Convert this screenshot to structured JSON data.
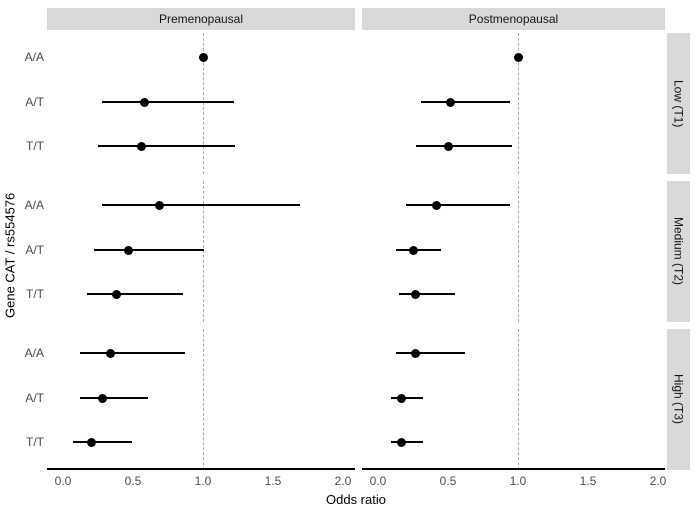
{
  "chart_data": {
    "type": "scatter",
    "subtype": "forest-plot-faceted",
    "title": "",
    "xlabel": "Odds ratio",
    "ylabel": "Gene CAT / rs554576",
    "xlim": [
      0.0,
      2.0
    ],
    "x_ticks": [
      0.0,
      0.5,
      1.0,
      1.5,
      2.0
    ],
    "x_tick_labels": [
      "0.0",
      "0.5",
      "1.0",
      "1.5",
      "2.0"
    ],
    "reference_line_x": 1.0,
    "grid": "off",
    "columns": [
      "Premenopausal",
      "Postmenopausal"
    ],
    "rows": [
      "Low (T1)",
      "Medium (T2)",
      "High (T3)"
    ],
    "categories": [
      "A/A",
      "A/T",
      "T/T"
    ],
    "panels": [
      {
        "column": "Premenopausal",
        "row": "Low (T1)",
        "points": [
          {
            "genotype": "A/A",
            "or": 1.0,
            "lo": null,
            "hi": null,
            "reference": true
          },
          {
            "genotype": "A/T",
            "or": 0.58,
            "lo": 0.28,
            "hi": 1.22,
            "reference": false
          },
          {
            "genotype": "T/T",
            "or": 0.56,
            "lo": 0.25,
            "hi": 1.23,
            "reference": false
          }
        ]
      },
      {
        "column": "Premenopausal",
        "row": "Medium (T2)",
        "points": [
          {
            "genotype": "A/A",
            "or": 0.69,
            "lo": 0.28,
            "hi": 1.69,
            "reference": false
          },
          {
            "genotype": "A/T",
            "or": 0.47,
            "lo": 0.22,
            "hi": 1.01,
            "reference": false
          },
          {
            "genotype": "T/T",
            "or": 0.38,
            "lo": 0.17,
            "hi": 0.86,
            "reference": false
          }
        ]
      },
      {
        "column": "Premenopausal",
        "row": "High (T3)",
        "points": [
          {
            "genotype": "A/A",
            "or": 0.34,
            "lo": 0.12,
            "hi": 0.87,
            "reference": false
          },
          {
            "genotype": "A/T",
            "or": 0.28,
            "lo": 0.12,
            "hi": 0.61,
            "reference": false
          },
          {
            "genotype": "T/T",
            "or": 0.2,
            "lo": 0.07,
            "hi": 0.49,
            "reference": false
          }
        ]
      },
      {
        "column": "Postmenopausal",
        "row": "Low (T1)",
        "points": [
          {
            "genotype": "A/A",
            "or": 1.0,
            "lo": null,
            "hi": null,
            "reference": true
          },
          {
            "genotype": "A/T",
            "or": 0.52,
            "lo": 0.31,
            "hi": 0.94,
            "reference": false
          },
          {
            "genotype": "T/T",
            "or": 0.5,
            "lo": 0.27,
            "hi": 0.96,
            "reference": false
          }
        ]
      },
      {
        "column": "Postmenopausal",
        "row": "Medium (T2)",
        "points": [
          {
            "genotype": "A/A",
            "or": 0.42,
            "lo": 0.2,
            "hi": 0.94,
            "reference": false
          },
          {
            "genotype": "A/T",
            "or": 0.25,
            "lo": 0.13,
            "hi": 0.45,
            "reference": false
          },
          {
            "genotype": "T/T",
            "or": 0.27,
            "lo": 0.15,
            "hi": 0.55,
            "reference": false
          }
        ]
      },
      {
        "column": "Postmenopausal",
        "row": "High (T3)",
        "points": [
          {
            "genotype": "A/A",
            "or": 0.27,
            "lo": 0.13,
            "hi": 0.62,
            "reference": false
          },
          {
            "genotype": "A/T",
            "or": 0.17,
            "lo": 0.09,
            "hi": 0.32,
            "reference": false
          },
          {
            "genotype": "T/T",
            "or": 0.17,
            "lo": 0.09,
            "hi": 0.32,
            "reference": false
          }
        ]
      }
    ],
    "colors": {
      "point": "#000000",
      "ci_line": "#000000",
      "reference_line": "#ababab",
      "strip_fill": "#d9d9d9",
      "axis_text": "#4d4d4d",
      "axis_line": "#000000",
      "background": "#ffffff"
    }
  }
}
